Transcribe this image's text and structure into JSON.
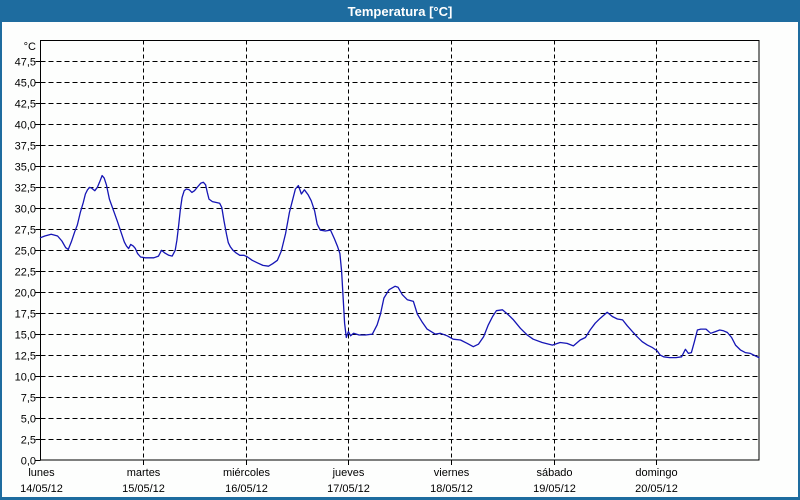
{
  "window": {
    "title": "Temperatura [°C]",
    "titlebar_color": "#1e6c9f",
    "border_color": "#1e6c9f",
    "background_color": "#fdfefd"
  },
  "chart_data": {
    "type": "line",
    "title": "Temperatura [°C]",
    "unit_label": "°C",
    "grid": "dashed-black",
    "legend": "none",
    "plot_background": "#fdfefd",
    "line_color": "#1515b5",
    "y_axis": {
      "min": 0,
      "max": 50,
      "step": 2.5,
      "tick_labels": [
        "0,0",
        "2,5",
        "5,0",
        "7,5",
        "10,0",
        "12,5",
        "15,0",
        "17,5",
        "20,0",
        "22,5",
        "25,0",
        "27,5",
        "30,0",
        "32,5",
        "35,0",
        "37,5",
        "40,0",
        "42,5",
        "45,0",
        "47,5"
      ]
    },
    "x_axis": {
      "total_hours": 168,
      "hours_per_day": 24,
      "days": [
        {
          "name": "lunes",
          "date": "14/05/12"
        },
        {
          "name": "martes",
          "date": "15/05/12"
        },
        {
          "name": "miércoles",
          "date": "16/05/12"
        },
        {
          "name": "jueves",
          "date": "17/05/12"
        },
        {
          "name": "viernes",
          "date": "18/05/12"
        },
        {
          "name": "sábado",
          "date": "19/05/12"
        },
        {
          "name": "domingo",
          "date": "20/05/12"
        }
      ]
    },
    "series": [
      {
        "name": "Temperatura",
        "color": "#1515b5",
        "points": [
          [
            0,
            26.5
          ],
          [
            1,
            26.7
          ],
          [
            2.5,
            26.9
          ],
          [
            4,
            26.7
          ],
          [
            5,
            26.1
          ],
          [
            5.9,
            25.3
          ],
          [
            6.5,
            25.1
          ],
          [
            7.2,
            26.0
          ],
          [
            8,
            27.2
          ],
          [
            8.6,
            28.0
          ],
          [
            9.3,
            29.5
          ],
          [
            10,
            30.7
          ],
          [
            10.5,
            31.7
          ],
          [
            11,
            32.2
          ],
          [
            11.5,
            32.5
          ],
          [
            12,
            32.4
          ],
          [
            12.7,
            32.1
          ],
          [
            13.3,
            32.5
          ],
          [
            13.8,
            33.1
          ],
          [
            14.4,
            33.9
          ],
          [
            14.9,
            33.6
          ],
          [
            15.4,
            32.8
          ],
          [
            16.1,
            31.1
          ],
          [
            17.1,
            29.7
          ],
          [
            18,
            28.4
          ],
          [
            18.8,
            27.2
          ],
          [
            19.6,
            26.0
          ],
          [
            20.1,
            25.5
          ],
          [
            20.6,
            25.2
          ],
          [
            21.1,
            25.7
          ],
          [
            21.7,
            25.5
          ],
          [
            22.2,
            25.2
          ],
          [
            22.7,
            24.6
          ],
          [
            23.4,
            24.2
          ],
          [
            24.5,
            24.1
          ],
          [
            26.5,
            24.1
          ],
          [
            27.6,
            24.3
          ],
          [
            28.3,
            25.0
          ],
          [
            29,
            24.7
          ],
          [
            30,
            24.4
          ],
          [
            30.8,
            24.3
          ],
          [
            31.5,
            25.0
          ],
          [
            31.9,
            26.2
          ],
          [
            32.3,
            27.9
          ],
          [
            32.7,
            29.9
          ],
          [
            33.1,
            31.3
          ],
          [
            33.6,
            32.1
          ],
          [
            34.1,
            32.3
          ],
          [
            34.8,
            32.2
          ],
          [
            35.4,
            31.9
          ],
          [
            36,
            32.1
          ],
          [
            36.8,
            32.6
          ],
          [
            37.5,
            33.0
          ],
          [
            38.1,
            33.1
          ],
          [
            38.6,
            32.8
          ],
          [
            39,
            31.9
          ],
          [
            39.4,
            31.1
          ],
          [
            40.2,
            30.8
          ],
          [
            41,
            30.7
          ],
          [
            41.9,
            30.6
          ],
          [
            42.4,
            30.1
          ],
          [
            42.9,
            28.5
          ],
          [
            43.5,
            26.9
          ],
          [
            43.9,
            25.9
          ],
          [
            44.4,
            25.4
          ],
          [
            45,
            25.0
          ],
          [
            45.7,
            24.7
          ],
          [
            46.6,
            24.4
          ],
          [
            47.6,
            24.4
          ],
          [
            48.4,
            24.2
          ],
          [
            49.5,
            23.8
          ],
          [
            50.7,
            23.5
          ],
          [
            52,
            23.2
          ],
          [
            53.3,
            23.1
          ],
          [
            54.3,
            23.4
          ],
          [
            55.4,
            23.8
          ],
          [
            56.3,
            24.9
          ],
          [
            57.3,
            27.0
          ],
          [
            58.2,
            29.5
          ],
          [
            58.9,
            30.9
          ],
          [
            59.6,
            32.3
          ],
          [
            60.3,
            32.7
          ],
          [
            61,
            31.7
          ],
          [
            61.7,
            32.2
          ],
          [
            62.6,
            31.6
          ],
          [
            63.3,
            30.9
          ],
          [
            64.1,
            29.7
          ],
          [
            64.7,
            28.1
          ],
          [
            65.4,
            27.4
          ],
          [
            66.6,
            27.3
          ],
          [
            67.8,
            27.4
          ],
          [
            68.7,
            26.4
          ],
          [
            69.5,
            25.4
          ],
          [
            70,
            24.6
          ],
          [
            70.4,
            22.5
          ],
          [
            70.8,
            19.0
          ],
          [
            71.1,
            16.3
          ],
          [
            71.5,
            14.6
          ],
          [
            72,
            15.3
          ],
          [
            72.5,
            14.8
          ],
          [
            73.2,
            15.1
          ],
          [
            74.5,
            14.9
          ],
          [
            76,
            14.9
          ],
          [
            77.6,
            15.0
          ],
          [
            78.7,
            16.1
          ],
          [
            79.5,
            17.4
          ],
          [
            80.3,
            19.3
          ],
          [
            81.5,
            20.3
          ],
          [
            82.9,
            20.7
          ],
          [
            83.6,
            20.6
          ],
          [
            84.6,
            19.7
          ],
          [
            85.8,
            19.1
          ],
          [
            87.2,
            18.9
          ],
          [
            88.1,
            17.4
          ],
          [
            89.3,
            16.4
          ],
          [
            90.4,
            15.6
          ],
          [
            92.3,
            15.0
          ],
          [
            93.5,
            15.1
          ],
          [
            95.1,
            14.8
          ],
          [
            96.5,
            14.4
          ],
          [
            98.2,
            14.3
          ],
          [
            99.8,
            13.9
          ],
          [
            101.2,
            13.5
          ],
          [
            102.4,
            13.8
          ],
          [
            103.6,
            14.7
          ],
          [
            104.7,
            16.1
          ],
          [
            105.7,
            17.1
          ],
          [
            106.6,
            17.8
          ],
          [
            108,
            17.9
          ],
          [
            109.4,
            17.3
          ],
          [
            110.6,
            16.7
          ],
          [
            112.2,
            15.7
          ],
          [
            113.8,
            14.9
          ],
          [
            115.2,
            14.4
          ],
          [
            117.3,
            14.0
          ],
          [
            119.7,
            13.7
          ],
          [
            121.5,
            14.0
          ],
          [
            123.1,
            13.9
          ],
          [
            124.6,
            13.6
          ],
          [
            126.2,
            14.3
          ],
          [
            127.4,
            14.6
          ],
          [
            128.5,
            15.5
          ],
          [
            129.7,
            16.3
          ],
          [
            130.9,
            16.9
          ],
          [
            132.5,
            17.6
          ],
          [
            133.7,
            17.1
          ],
          [
            134.9,
            16.8
          ],
          [
            136.1,
            16.7
          ],
          [
            137.2,
            16.0
          ],
          [
            138.4,
            15.3
          ],
          [
            139.5,
            14.7
          ],
          [
            140.7,
            14.1
          ],
          [
            141.9,
            13.7
          ],
          [
            143.1,
            13.4
          ],
          [
            144.2,
            13.0
          ],
          [
            144.9,
            12.5
          ],
          [
            145.7,
            12.3
          ],
          [
            147.1,
            12.2
          ],
          [
            148.6,
            12.2
          ],
          [
            149.9,
            12.3
          ],
          [
            150.8,
            13.2
          ],
          [
            151.5,
            12.7
          ],
          [
            152.2,
            12.8
          ],
          [
            152.9,
            14.1
          ],
          [
            153.6,
            15.5
          ],
          [
            154.4,
            15.6
          ],
          [
            155.6,
            15.6
          ],
          [
            156.7,
            15.1
          ],
          [
            157.8,
            15.3
          ],
          [
            158.8,
            15.5
          ],
          [
            159.7,
            15.4
          ],
          [
            160.6,
            15.2
          ],
          [
            161.6,
            14.6
          ],
          [
            162.5,
            13.7
          ],
          [
            163.7,
            13.1
          ],
          [
            164.8,
            12.8
          ],
          [
            166,
            12.7
          ],
          [
            167.2,
            12.4
          ],
          [
            168,
            12.2
          ]
        ]
      }
    ]
  }
}
